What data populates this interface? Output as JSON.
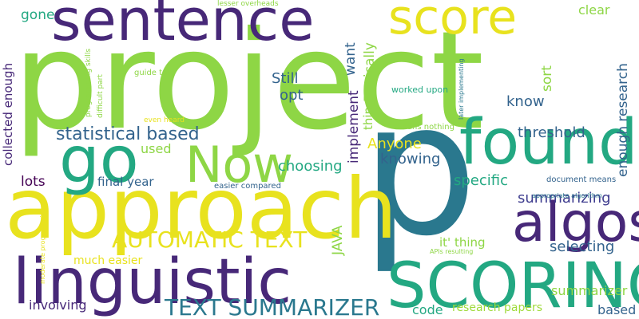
{
  "palette": {
    "yellow": "#e8e21e",
    "lime": "#8ed645",
    "green": "#3dbc74",
    "teal": "#23a882",
    "blue": "#2a788e",
    "slate": "#33638d",
    "purple": "#3f3d8f",
    "violet": "#472878",
    "dark": "#440154",
    "light": "#9fda3a"
  },
  "words": [
    {
      "id": "project",
      "text": "project",
      "color": "lime"
    },
    {
      "id": "p",
      "text": "p",
      "color": "blue"
    },
    {
      "id": "approach",
      "text": "approach",
      "color": "yellow"
    },
    {
      "id": "sentence",
      "text": "sentence",
      "color": "violet"
    },
    {
      "id": "score",
      "text": "score",
      "color": "yellow"
    },
    {
      "id": "linguistic",
      "text": "linguistic",
      "color": "violet"
    },
    {
      "id": "scoring",
      "text": "SCORING",
      "color": "teal"
    },
    {
      "id": "found",
      "text": "found",
      "color": "teal"
    },
    {
      "id": "now",
      "text": "Now",
      "color": "lime"
    },
    {
      "id": "go",
      "text": "go",
      "color": "teal"
    },
    {
      "id": "algos",
      "text": "algos",
      "color": "violet"
    },
    {
      "id": "automatic-text",
      "text": "AUTOMATIC TEXT",
      "color": "yellow"
    },
    {
      "id": "text-summarizer",
      "text": "TEXT SUMMARIZER",
      "color": "blue"
    },
    {
      "id": "statistical-based",
      "text": "statistical based",
      "color": "slate"
    },
    {
      "id": "threshold",
      "text": "threshold",
      "color": "slate"
    },
    {
      "id": "enough-research",
      "text": "enough research",
      "color": "slate"
    },
    {
      "id": "collected-enough",
      "text": "collected enough",
      "color": "violet"
    },
    {
      "id": "gone",
      "text": "gone",
      "color": "teal"
    },
    {
      "id": "clear",
      "text": "clear",
      "color": "lime"
    },
    {
      "id": "still",
      "text": "Still",
      "color": "slate"
    },
    {
      "id": "opt",
      "text": "opt",
      "color": "slate"
    },
    {
      "id": "want",
      "text": "want",
      "color": "slate"
    },
    {
      "id": "basically",
      "text": "Basically",
      "color": "lime"
    },
    {
      "id": "sort",
      "text": "sort",
      "color": "lime"
    },
    {
      "id": "know",
      "text": "know",
      "color": "slate"
    },
    {
      "id": "implement",
      "text": "implement",
      "color": "violet"
    },
    {
      "id": "thing",
      "text": "thing",
      "color": "lime"
    },
    {
      "id": "anyone",
      "text": "Anyone",
      "color": "yellow"
    },
    {
      "id": "knowing",
      "text": "knowing",
      "color": "slate"
    },
    {
      "id": "used",
      "text": "used",
      "color": "lime"
    },
    {
      "id": "choosing",
      "text": "choosing",
      "color": "teal"
    },
    {
      "id": "lots",
      "text": "lots",
      "color": "dark"
    },
    {
      "id": "final-year",
      "text": "final year",
      "color": "slate"
    },
    {
      "id": "specific",
      "text": "specific",
      "color": "teal"
    },
    {
      "id": "summarizing",
      "text": "summarizing",
      "color": "purple"
    },
    {
      "id": "java",
      "text": "JAVA",
      "color": "lime"
    },
    {
      "id": "it-thing",
      "text": "it' thing",
      "color": "lime"
    },
    {
      "id": "selecting",
      "text": "selecting",
      "color": "slate"
    },
    {
      "id": "much-easier",
      "text": "much easier",
      "color": "yellow"
    },
    {
      "id": "involving",
      "text": "involving",
      "color": "violet"
    },
    {
      "id": "code",
      "text": "code",
      "color": "teal"
    },
    {
      "id": "research-papers",
      "text": "research papers",
      "color": "light"
    },
    {
      "id": "based",
      "text": "based",
      "color": "slate"
    },
    {
      "id": "summarizer",
      "text": "summarizer",
      "color": "lime"
    },
    {
      "id": "lesser-overheads",
      "text": "lesser overheads",
      "color": "lime"
    },
    {
      "id": "guide-told",
      "text": "guide told",
      "color": "lime"
    },
    {
      "id": "programming-skills",
      "text": "programming skills",
      "color": "lime"
    },
    {
      "id": "difficult-part",
      "text": "difficult part",
      "color": "lime"
    },
    {
      "id": "even-heard",
      "text": "even heard",
      "color": "yellow"
    },
    {
      "id": "worked-upon",
      "text": "worked upon",
      "color": "teal"
    },
    {
      "id": "later-implementing",
      "text": "later implementing",
      "color": "blue"
    },
    {
      "id": "means-nothing",
      "text": "means nothing",
      "color": "lime"
    },
    {
      "id": "easier-compared",
      "text": "easier compared",
      "color": "slate"
    },
    {
      "id": "document-means",
      "text": "document means",
      "color": "slate"
    },
    {
      "id": "appropriate-algorithm",
      "text": "appropriate algorithm",
      "color": "blue"
    },
    {
      "id": "moderate-programming",
      "text": "moderate programming",
      "color": "yellow"
    },
    {
      "id": "apis-resulting",
      "text": "APIs resulting",
      "color": "lime"
    }
  ]
}
